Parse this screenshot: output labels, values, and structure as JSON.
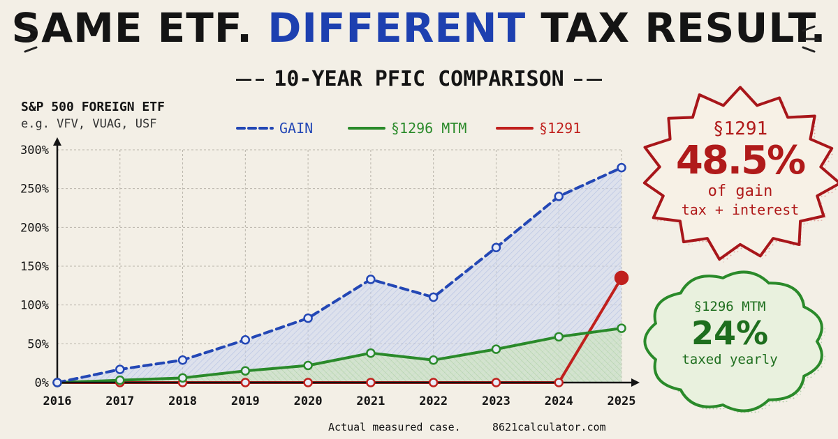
{
  "header": {
    "title_pre": "SAME ETF.",
    "title_accent": "DIFFERENT",
    "title_post": "TAX RESULT.",
    "subtitle": "10-YEAR PFIC COMPARISON"
  },
  "etf": {
    "name": "S&P 500 FOREIGN ETF",
    "examples": "e.g. VFV, VUAG, USF"
  },
  "footer": {
    "note": "Actual measured case.",
    "site": "8621calculator.com"
  },
  "callouts": {
    "s1291": {
      "label": "§1291",
      "value": "48.5%",
      "line1": "of gain",
      "line2": "tax + interest"
    },
    "s1296": {
      "label": "§1296 MTM",
      "value": "24%",
      "line1": "taxed yearly"
    }
  },
  "colors": {
    "gain": "#2347b5",
    "mtm": "#2a8a2a",
    "s1291": "#c0201d",
    "accent": "#1d40b0"
  },
  "chart_data": {
    "type": "line",
    "x": [
      "2016",
      "2017",
      "2018",
      "2019",
      "2020",
      "2021",
      "2022",
      "2023",
      "2024",
      "2025"
    ],
    "ylim": [
      0,
      300
    ],
    "yticks": [
      "0%",
      "50%",
      "100%",
      "150%",
      "200%",
      "250%",
      "300%"
    ],
    "legend_position": "top",
    "grid": true,
    "series": [
      {
        "name": "GAIN",
        "key": "gain",
        "style": "dashed",
        "values": [
          0,
          17,
          29,
          55,
          83,
          133,
          110,
          174,
          240,
          277
        ]
      },
      {
        "name": "§1296 MTM",
        "key": "mtm",
        "style": "solid",
        "values": [
          0,
          3,
          6,
          15,
          22,
          38,
          29,
          43,
          59,
          70
        ]
      },
      {
        "name": "§1291",
        "key": "s1291",
        "style": "solid",
        "values": [
          0,
          0,
          0,
          0,
          0,
          0,
          0,
          0,
          0,
          135
        ]
      }
    ]
  }
}
